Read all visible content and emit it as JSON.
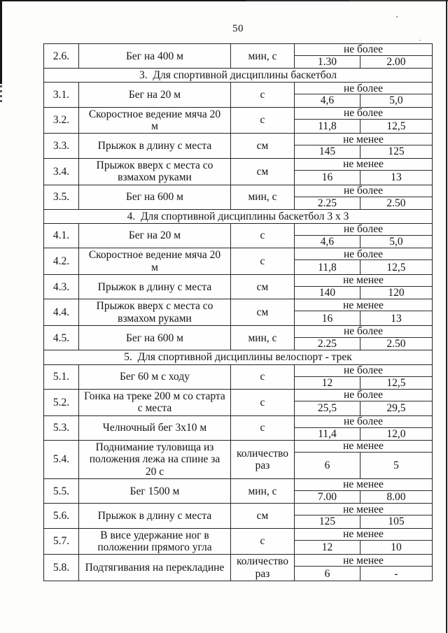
{
  "page": {
    "number": "50"
  },
  "table": {
    "sections": [
      {
        "header": "",
        "rows": [
          {
            "num": "2.6.",
            "name": "Бег на 400 м",
            "unit": "мин, с",
            "limit": "не более",
            "v1": "1.30",
            "v2": "2.00"
          }
        ]
      },
      {
        "header": "3.  Для спортивной дисциплины баскетбол",
        "rows": [
          {
            "num": "3.1.",
            "name": "Бег на 20 м",
            "unit": "с",
            "limit": "не более",
            "v1": "4,6",
            "v2": "5,0"
          },
          {
            "num": "3.2.",
            "name": "Скоростное ведение мяча 20 м",
            "unit": "с",
            "limit": "не более",
            "v1": "11,8",
            "v2": "12,5"
          },
          {
            "num": "3.3.",
            "name": "Прыжок в длину с места",
            "unit": "см",
            "limit": "не менее",
            "v1": "145",
            "v2": "125"
          },
          {
            "num": "3.4.",
            "name": "Прыжок вверх с места со взмахом руками",
            "unit": "см",
            "limit": "не менее",
            "v1": "16",
            "v2": "13"
          },
          {
            "num": "3.5.",
            "name": "Бег на 600 м",
            "unit": "мин, с",
            "limit": "не более",
            "v1": "2.25",
            "v2": "2.50"
          }
        ]
      },
      {
        "header": "4.  Для спортивной дисциплины баскетбол 3 х 3",
        "rows": [
          {
            "num": "4.1.",
            "name": "Бег на 20 м",
            "unit": "с",
            "limit": "не более",
            "v1": "4,6",
            "v2": "5,0"
          },
          {
            "num": "4.2.",
            "name": "Скоростное ведение мяча 20 м",
            "unit": "с",
            "limit": "не более",
            "v1": "11,8",
            "v2": "12,5"
          },
          {
            "num": "4.3.",
            "name": "Прыжок в длину с места",
            "unit": "см",
            "limit": "не менее",
            "v1": "140",
            "v2": "120"
          },
          {
            "num": "4.4.",
            "name": "Прыжок вверх с места со взмахом руками",
            "unit": "см",
            "limit": "не менее",
            "v1": "16",
            "v2": "13"
          },
          {
            "num": "4.5.",
            "name": "Бег на 600 м",
            "unit": "мин, с",
            "limit": "не более",
            "v1": "2.25",
            "v2": "2.50"
          }
        ]
      },
      {
        "header": "5.  Для спортивной дисциплины велоспорт - трек",
        "rows": [
          {
            "num": "5.1.",
            "name": "Бег 60 м с ходу",
            "unit": "с",
            "limit": "не более",
            "v1": "12",
            "v2": "12,5"
          },
          {
            "num": "5.2.",
            "name": "Гонка на треке 200 м со старта с места",
            "unit": "с",
            "limit": "не более",
            "v1": "25,5",
            "v2": "29,5"
          },
          {
            "num": "5.3.",
            "name": "Челночный бег 3х10 м",
            "unit": "с",
            "limit": "не более",
            "v1": "11,4",
            "v2": "12,0"
          },
          {
            "num": "5.4.",
            "name": "Поднимание туловища из положения лежа на спине за 20 с",
            "unit": "количество раз",
            "limit": "не менее",
            "v1": "6",
            "v2": "5"
          },
          {
            "num": "5.5.",
            "name": "Бег 1500 м",
            "unit": "мин, с",
            "limit": "не менее",
            "v1": "7.00",
            "v2": "8.00"
          },
          {
            "num": "5.6.",
            "name": "Прыжок в длину с места",
            "unit": "см",
            "limit": "не менее",
            "v1": "125",
            "v2": "105"
          },
          {
            "num": "5.7.",
            "name": "В висе удержание ног в положении прямого угла",
            "unit": "с",
            "limit": "не менее",
            "v1": "12",
            "v2": "10"
          },
          {
            "num": "5.8.",
            "name": "Подтягивания на перекладине",
            "unit": "количество раз",
            "limit": "не менее",
            "v1": "6",
            "v2": "-"
          }
        ]
      }
    ]
  }
}
